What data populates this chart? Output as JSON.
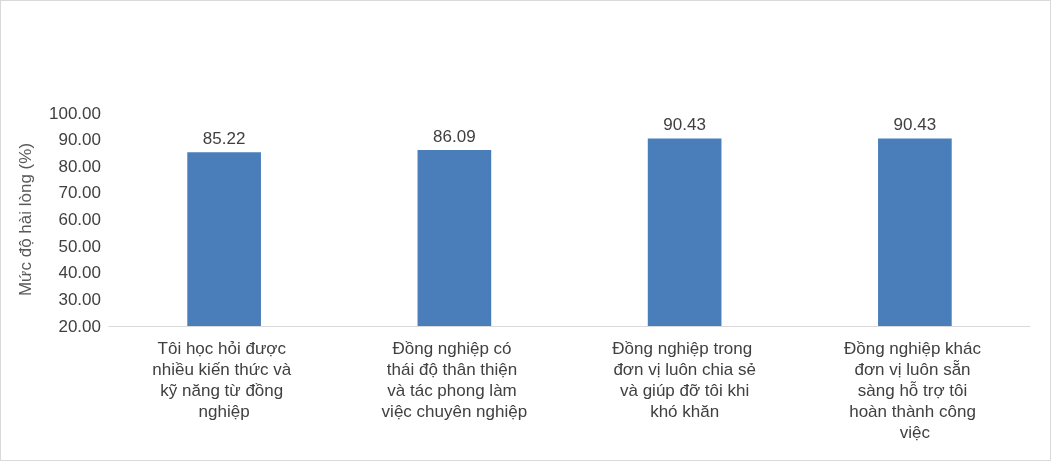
{
  "chart_data": {
    "type": "bar",
    "ylabel": "Mức độ hài lòng (%)",
    "categories": [
      "Tôi học hỏi được nhiều kiến thức và kỹ năng từ đồng nghiệp",
      "Đồng nghiệp có thái độ thân thiện và tác phong làm việc chuyên nghiệp",
      "Đồng nghiệp trong đơn vị luôn chia sẻ và giúp đỡ tôi khi khó khăn",
      "Đồng nghiệp khác đơn vị luôn sẵn sàng hỗ trợ tôi hoàn thành công việc"
    ],
    "values": [
      85.22,
      86.09,
      90.43,
      90.43
    ],
    "color": "#4a7ebb",
    "ylim": [
      20,
      100
    ],
    "yticks": [
      {
        "value": 20,
        "label": "20.00"
      },
      {
        "value": 30,
        "label": "30.00"
      },
      {
        "value": 40,
        "label": "40.00"
      },
      {
        "value": 50,
        "label": "50.00"
      },
      {
        "value": 60,
        "label": "60.00"
      },
      {
        "value": 70,
        "label": "70.00"
      },
      {
        "value": 80,
        "label": "80.00"
      },
      {
        "value": 90,
        "label": "90.00"
      },
      {
        "value": 100,
        "label": "100.00"
      }
    ],
    "data_labels": true
  }
}
